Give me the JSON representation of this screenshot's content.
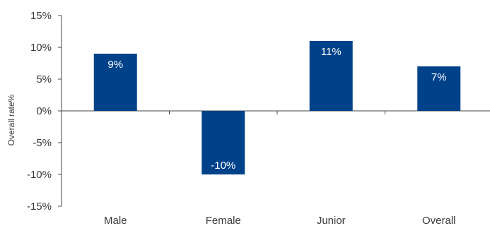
{
  "chart_data": {
    "type": "bar",
    "title": "",
    "xlabel": "",
    "ylabel": "Overall rate%",
    "categories": [
      "Male",
      "Female",
      "Junior",
      "Overall"
    ],
    "values": [
      9,
      -10,
      11,
      7
    ],
    "data_labels": [
      "9%",
      "-10%",
      "11%",
      "7%"
    ],
    "ylim": [
      -15,
      15
    ],
    "yticks": [
      15,
      10,
      5,
      0,
      -5,
      -10,
      -15
    ],
    "ytick_labels": [
      "15%",
      "10%",
      "5%",
      "0%",
      "-5%",
      "-10%",
      "-15%"
    ],
    "bar_color": "#00428a",
    "grid": false,
    "legend": "none"
  }
}
